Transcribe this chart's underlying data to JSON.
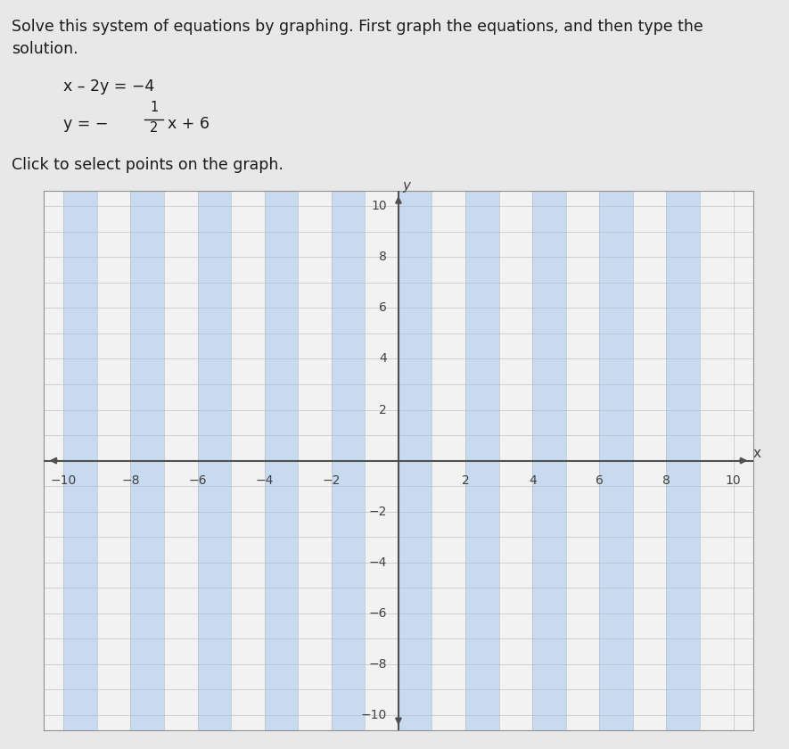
{
  "title_line1": "Solve this system of equations by graphing. First graph the equations, and then type the",
  "title_line2": "solution.",
  "eq1_left": "x – 2y = −4",
  "eq2_prefix": "y = −",
  "eq2_num": "1",
  "eq2_den": "2",
  "eq2_suffix": "x + 6",
  "click_text": "Click to select points on the graph.",
  "xlim": [
    -10,
    10
  ],
  "ylim": [
    -10,
    10
  ],
  "tick_step": 2,
  "blue_stripe_color": "#c8daf0",
  "white_bg": "#f0f0f0",
  "grid_h_color": "#b0b8c0",
  "grid_v_color": "#b0b8c0",
  "axis_color": "#505050",
  "outer_bg": "#e8e8e8",
  "plot_bg": "#f2f2f2",
  "font_color": "#1a1a1a",
  "tick_label_color": "#404040",
  "fig_width": 8.85,
  "fig_height": 8.4,
  "dpi": 100
}
